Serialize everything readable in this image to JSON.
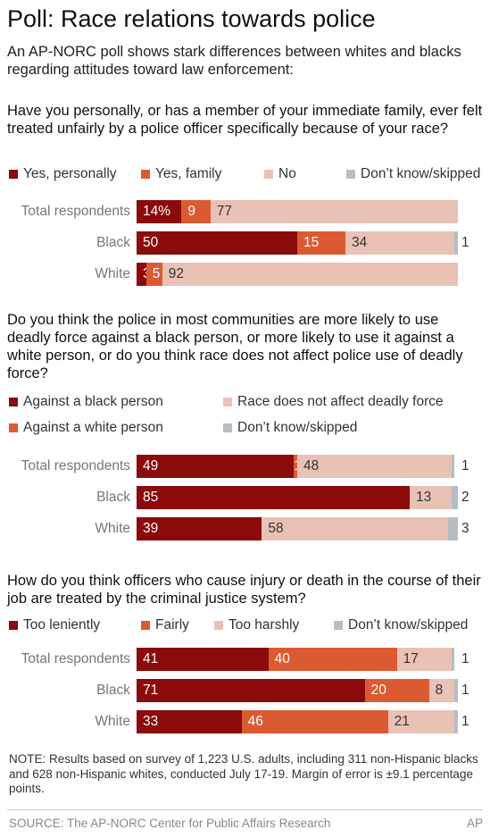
{
  "title": "Poll: Race relations towards police",
  "subtitle": "An AP-NORC poll shows stark differences between whites and blacks regarding attitudes toward law enforcement:",
  "note": "NOTE: Results based on survey of 1,223 U.S. adults, including 311 non-Hispanic blacks and 628 non-Hispanic whites, conducted July 17-19. Margin of error is ±9.1 percentage points.",
  "source": "SOURCE: The AP-NORC Center for Public Affairs Research",
  "credit": "AP",
  "colors": {
    "dark_red": "#8b0a0a",
    "orange": "#db5a32",
    "light_pink": "#e9c2b5",
    "gray": "#b4bec4"
  },
  "chart_data": [
    {
      "type": "bar",
      "orientation": "horizontal",
      "stacked": true,
      "title": "Have you personally, or has a member of your immediate family, ever felt treated unfairly by a police officer specifically because of your race?",
      "categories": [
        "Total respondents",
        "Black",
        "White"
      ],
      "series": [
        {
          "name": "Yes, personally",
          "color": "#8b0a0a",
          "values": [
            14,
            50,
            3
          ],
          "labels": [
            "14%",
            "50",
            "3"
          ]
        },
        {
          "name": "Yes, family",
          "color": "#db5a32",
          "values": [
            9,
            15,
            5
          ],
          "labels": [
            "9",
            "15",
            "5"
          ]
        },
        {
          "name": "No",
          "color": "#e9c2b5",
          "values": [
            77,
            34,
            92
          ],
          "labels": [
            "77",
            "34",
            "92"
          ]
        },
        {
          "name": "Don’t know/skipped",
          "color": "#b4bec4",
          "values": [
            0,
            1,
            0
          ],
          "labels": [
            "",
            "1",
            ""
          ]
        }
      ],
      "xlim": [
        0,
        100
      ]
    },
    {
      "type": "bar",
      "orientation": "horizontal",
      "stacked": true,
      "title": "Do you think the police in most communities are more likely to use deadly force against a black person, or more likely to use it against a white person, or do you think race does not affect police use of deadly force?",
      "categories": [
        "Total respondents",
        "Black",
        "White"
      ],
      "series": [
        {
          "name": "Against a black person",
          "color": "#8b0a0a",
          "values": [
            49,
            85,
            39
          ],
          "labels": [
            "49",
            "85",
            "39"
          ]
        },
        {
          "name": "Against a white person",
          "color": "#db5a32",
          "values": [
            1,
            0,
            0
          ],
          "labels": [
            "1",
            "",
            ""
          ]
        },
        {
          "name": "Race does not affect deadly force",
          "color": "#e9c2b5",
          "values": [
            48,
            13,
            58
          ],
          "labels": [
            "48",
            "13",
            "58"
          ]
        },
        {
          "name": "Don’t know/skipped",
          "color": "#b4bec4",
          "values": [
            1,
            2,
            3
          ],
          "labels": [
            "1",
            "2",
            "3"
          ]
        }
      ],
      "xlim": [
        0,
        100
      ]
    },
    {
      "type": "bar",
      "orientation": "horizontal",
      "stacked": true,
      "title": "How do you think officers who cause injury or death in the course of their job are treated by the criminal justice system?",
      "categories": [
        "Total respondents",
        "Black",
        "White"
      ],
      "series": [
        {
          "name": "Too leniently",
          "color": "#8b0a0a",
          "values": [
            41,
            71,
            33
          ],
          "labels": [
            "41",
            "71",
            "33"
          ]
        },
        {
          "name": "Fairly",
          "color": "#db5a32",
          "values": [
            40,
            20,
            46
          ],
          "labels": [
            "40",
            "20",
            "46"
          ]
        },
        {
          "name": "Too harshly",
          "color": "#e9c2b5",
          "values": [
            17,
            8,
            21
          ],
          "labels": [
            "17",
            "8",
            "21"
          ]
        },
        {
          "name": "Don’t know/skipped",
          "color": "#b4bec4",
          "values": [
            1,
            1,
            1
          ],
          "labels": [
            "1",
            "1",
            "1"
          ]
        }
      ],
      "xlim": [
        0,
        100
      ]
    }
  ]
}
